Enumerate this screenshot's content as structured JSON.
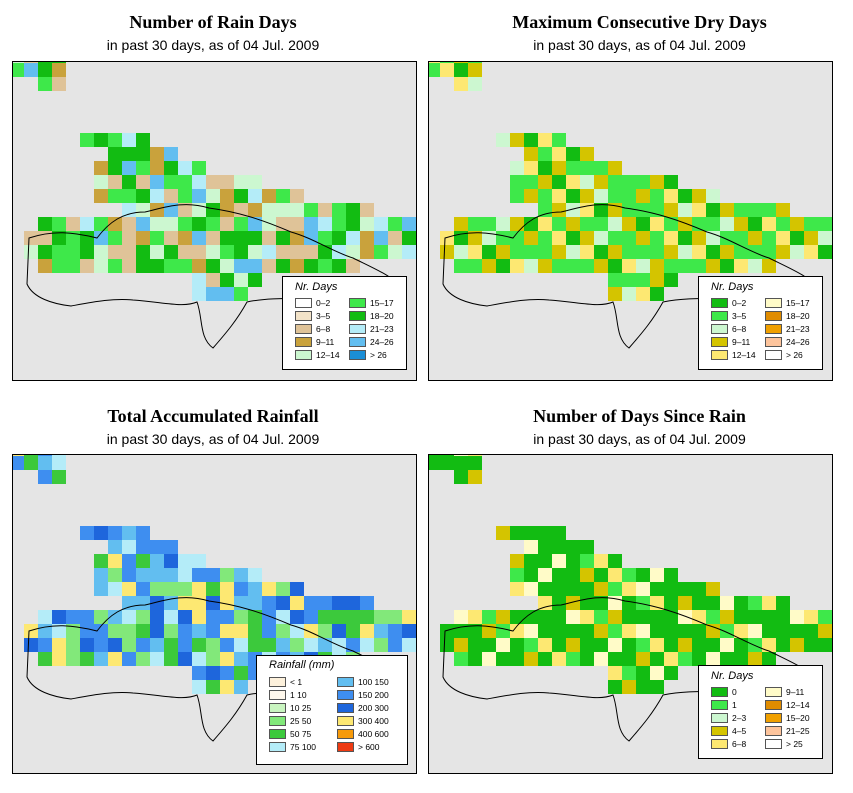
{
  "panels": [
    {
      "title": "Number of Rain Days",
      "subtitle": "in past 30 days, as of  04 Jul. 2009",
      "legend_title": "Nr. Days",
      "legend": [
        {
          "label": "0–2",
          "color": "#ffffff"
        },
        {
          "label": "3–5",
          "color": "#f3e3c8"
        },
        {
          "label": "6–8",
          "color": "#dfc398"
        },
        {
          "label": "9–11",
          "color": "#c9a23c"
        },
        {
          "label": "12–14",
          "color": "#ccf7d0"
        },
        {
          "label": "15–17",
          "color": "#3ee84a"
        },
        {
          "label": "18–20",
          "color": "#12bc12"
        },
        {
          "label": "21–23",
          "color": "#b4ecf8"
        },
        {
          "label": "24–26",
          "color": "#62bef0"
        },
        {
          "label": "> 26",
          "color": "#1a8ed6"
        }
      ]
    },
    {
      "title": "Maximum Consecutive Dry Days",
      "subtitle": "in past 30 days, as of  04 Jul. 2009",
      "legend_title": "Nr. Days",
      "legend": [
        {
          "label": "0–2",
          "color": "#12bc12"
        },
        {
          "label": "3–5",
          "color": "#3ee84a"
        },
        {
          "label": "6–8",
          "color": "#ccf7d0"
        },
        {
          "label": "9–11",
          "color": "#d4c400"
        },
        {
          "label": "12–14",
          "color": "#fde872"
        },
        {
          "label": "15–17",
          "color": "#fffbc8"
        },
        {
          "label": "18–20",
          "color": "#e08c00"
        },
        {
          "label": "21–23",
          "color": "#f0a000"
        },
        {
          "label": "24–26",
          "color": "#fdc49c"
        },
        {
          "label": "> 26",
          "color": "#ffffff"
        }
      ]
    },
    {
      "title": "Total Accumulated Rainfall",
      "subtitle": "in past 30 days, as of  04 Jul. 2009",
      "legend_title": "Rainfall (mm)",
      "legend": [
        {
          "label": "< 1",
          "color": "#fdf1dc"
        },
        {
          "label": "1   10",
          "color": "#fff8ec"
        },
        {
          "label": "10   25",
          "color": "#c9f5c0"
        },
        {
          "label": "25   50",
          "color": "#82e87a"
        },
        {
          "label": "50   75",
          "color": "#3cc93c"
        },
        {
          "label": "75   100",
          "color": "#b4ecf8"
        },
        {
          "label": "100   150",
          "color": "#62bef0"
        },
        {
          "label": "150   200",
          "color": "#3e8ef0"
        },
        {
          "label": "200   300",
          "color": "#1e66dc"
        },
        {
          "label": "300   400",
          "color": "#fde872"
        },
        {
          "label": "400   600",
          "color": "#f79a0a"
        },
        {
          "label": "> 600",
          "color": "#ee3a12"
        }
      ]
    },
    {
      "title": "Number of Days Since Rain",
      "subtitle": "in past 30 days, as of  04 Jul. 2009",
      "legend_title": "Nr. Days",
      "legend": [
        {
          "label": "0",
          "color": "#12bc12"
        },
        {
          "label": "1",
          "color": "#3ee84a"
        },
        {
          "label": "2–3",
          "color": "#ccf7d0"
        },
        {
          "label": "4–5",
          "color": "#d4c400"
        },
        {
          "label": "6–8",
          "color": "#fde872"
        },
        {
          "label": "9–11",
          "color": "#fffbc8"
        },
        {
          "label": "12–14",
          "color": "#e08c00"
        },
        {
          "label": "15–20",
          "color": "#f0a000"
        },
        {
          "label": "21–25",
          "color": "#fdc49c"
        },
        {
          "label": "> 25",
          "color": "#ffffff"
        }
      ]
    }
  ]
}
